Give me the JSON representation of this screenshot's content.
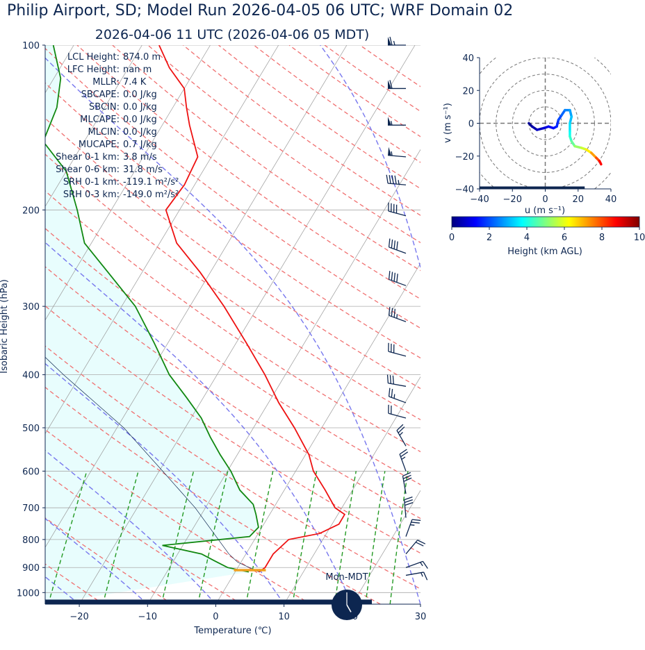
{
  "header": {
    "title": "Philip Airport, SD; Model Run 2026-04-05 06 UTC; WRF Domain 02",
    "subtitle": "2026-04-06 11 UTC  (2026-04-06 05 MDT)"
  },
  "colors": {
    "temperature": "#ee1111",
    "dewpoint": "#118811",
    "parcel_fill": "#e8fdfd",
    "dry_adiabat": "#f07070",
    "moist_adiabat": "#7777ee",
    "mixing_ratio": "#229922",
    "isotherm": "#999999",
    "text": "#0d2650",
    "lcl_marker": "#f0a020"
  },
  "stats": [
    {
      "label": "LCL Height:",
      "value": "874.0 m"
    },
    {
      "label": "LFC Height:",
      "value": "nan m"
    },
    {
      "label": "MLLR:",
      "value": "7.4 K"
    },
    {
      "label": "SBCAPE:",
      "value": "0.0 J/kg"
    },
    {
      "label": "SBCIN:",
      "value": "0.0 J/kg"
    },
    {
      "label": "MLCAPE:",
      "value": "0.0 J/kg"
    },
    {
      "label": "MLCIN:",
      "value": "0.0 J/kg"
    },
    {
      "label": "MUCAPE:",
      "value": "0.7 J/kg"
    },
    {
      "label": "Shear 0-1 km:",
      "value": "3.8 m/s"
    },
    {
      "label": "Shear 0-6 km:",
      "value": "31.8 m/s"
    },
    {
      "label": "SRH 0-1 km:",
      "value": "-119.1 m²/s²"
    },
    {
      "label": "SRH 0-3 km:",
      "value": "-149.0 m²/s²"
    }
  ],
  "clock": {
    "label": "Mon-MDT",
    "hour": 5,
    "minute": 0
  },
  "chart_data": [
    {
      "type": "line",
      "kind": "skew-T log-p sounding",
      "xlabel": "Temperature (℃)",
      "ylabel": "Isobaric Height (hPa)",
      "xlim": [
        -25,
        30
      ],
      "ylim": [
        1050,
        100
      ],
      "x_ticks": [
        -20,
        -10,
        0,
        10,
        20,
        30
      ],
      "y_ticks": [
        100,
        200,
        300,
        400,
        500,
        600,
        700,
        800,
        900,
        1000
      ],
      "series": [
        {
          "role": "temperature",
          "points": [
            [
              917,
              3.5
            ],
            [
              900,
              4.0
            ],
            [
              850,
              4.0
            ],
            [
              800,
              5.0
            ],
            [
              780,
              9.0
            ],
            [
              750,
              11.0
            ],
            [
              720,
              11.0
            ],
            [
              700,
              9.0
            ],
            [
              650,
              6.0
            ],
            [
              600,
              2.6
            ],
            [
              560,
              0.5
            ],
            [
              500,
              -4.0
            ],
            [
              450,
              -8.5
            ],
            [
              400,
              -13.0
            ],
            [
              350,
              -18.5
            ],
            [
              300,
              -25.0
            ],
            [
              260,
              -31.5
            ],
            [
              230,
              -37.5
            ],
            [
              200,
              -42.0
            ],
            [
              180,
              -41.5
            ],
            [
              160,
              -42.0
            ],
            [
              140,
              -46.0
            ],
            [
              130,
              -48.0
            ],
            [
              120,
              -50.0
            ],
            [
              110,
              -54.0
            ],
            [
              100,
              -57.5
            ]
          ]
        },
        {
          "role": "dewpoint",
          "points": [
            [
              917,
              2.0
            ],
            [
              900,
              -1.5
            ],
            [
              875,
              -4.0
            ],
            [
              850,
              -6.5
            ],
            [
              820,
              -13.0
            ],
            [
              790,
              -1.0
            ],
            [
              760,
              -0.5
            ],
            [
              720,
              -2.0
            ],
            [
              690,
              -3.3
            ],
            [
              650,
              -6.5
            ],
            [
              600,
              -9.5
            ],
            [
              560,
              -12.5
            ],
            [
              520,
              -15.5
            ],
            [
              480,
              -18.5
            ],
            [
              440,
              -22.5
            ],
            [
              400,
              -27.0
            ],
            [
              350,
              -32.0
            ],
            [
              300,
              -38.0
            ],
            [
              260,
              -45.0
            ],
            [
              230,
              -51.0
            ],
            [
              200,
              -55.0
            ],
            [
              170,
              -60.0
            ],
            [
              150,
              -66.0
            ],
            [
              130,
              -67.0
            ],
            [
              115,
              -69.0
            ],
            [
              100,
              -73.0
            ]
          ]
        },
        {
          "role": "parcel",
          "points": [
            [
              917,
              3.5
            ],
            [
              880,
              -0.5
            ],
            [
              850,
              -2.5
            ],
            [
              700,
              -11.5
            ],
            [
              600,
              -19.5
            ],
            [
              500,
              -29.0
            ],
            [
              400,
              -42.5
            ],
            [
              300,
              -59.0
            ],
            [
              200,
              -85.0
            ]
          ]
        }
      ],
      "lcl": {
        "pressure": 910,
        "temperature": 2.0
      },
      "wind_barbs": {
        "units": "kt",
        "levels": [
          {
            "p": 100,
            "speed": 65,
            "dir": 270
          },
          {
            "p": 120,
            "speed": 60,
            "dir": 270
          },
          {
            "p": 140,
            "speed": 55,
            "dir": 270
          },
          {
            "p": 160,
            "speed": 55,
            "dir": 275
          },
          {
            "p": 180,
            "speed": 45,
            "dir": 275
          },
          {
            "p": 205,
            "speed": 40,
            "dir": 285
          },
          {
            "p": 240,
            "speed": 40,
            "dir": 290
          },
          {
            "p": 275,
            "speed": 40,
            "dir": 290
          },
          {
            "p": 320,
            "speed": 35,
            "dir": 290
          },
          {
            "p": 370,
            "speed": 30,
            "dir": 285
          },
          {
            "p": 420,
            "speed": 30,
            "dir": 280
          },
          {
            "p": 450,
            "speed": 25,
            "dir": 290
          },
          {
            "p": 480,
            "speed": 20,
            "dir": 285
          },
          {
            "p": 540,
            "speed": 25,
            "dir": 330
          },
          {
            "p": 600,
            "speed": 25,
            "dir": 340
          },
          {
            "p": 660,
            "speed": 30,
            "dir": 350
          },
          {
            "p": 730,
            "speed": 30,
            "dir": 355
          },
          {
            "p": 790,
            "speed": 25,
            "dir": 20
          },
          {
            "p": 850,
            "speed": 20,
            "dir": 40
          },
          {
            "p": 900,
            "speed": 15,
            "dir": 70
          },
          {
            "p": 930,
            "speed": 15,
            "dir": 80
          }
        ]
      }
    },
    {
      "type": "line",
      "kind": "hodograph",
      "xlabel": "u (m s⁻¹)",
      "ylabel": "v (m s⁻¹)",
      "xlim": [
        -40,
        40
      ],
      "ylim": [
        -40,
        40
      ],
      "x_ticks": [
        -40,
        -20,
        0,
        20,
        40
      ],
      "y_ticks": [
        -40,
        -20,
        0,
        20,
        40
      ],
      "ring_spacing": 10,
      "points": [
        {
          "u": -10,
          "v": 0,
          "h": 0.1
        },
        {
          "u": -8,
          "v": -2,
          "h": 0.3
        },
        {
          "u": -5,
          "v": -4,
          "h": 0.5
        },
        {
          "u": -1,
          "v": -3,
          "h": 0.8
        },
        {
          "u": 2,
          "v": -2,
          "h": 1.0
        },
        {
          "u": 5,
          "v": -3,
          "h": 1.3
        },
        {
          "u": 7,
          "v": -2,
          "h": 1.5
        },
        {
          "u": 8,
          "v": 2,
          "h": 1.8
        },
        {
          "u": 10,
          "v": 5,
          "h": 2.1
        },
        {
          "u": 12,
          "v": 8,
          "h": 2.4
        },
        {
          "u": 15,
          "v": 8,
          "h": 2.7
        },
        {
          "u": 16,
          "v": 4,
          "h": 3.0
        },
        {
          "u": 15,
          "v": 0,
          "h": 3.3
        },
        {
          "u": 15,
          "v": -5,
          "h": 3.7
        },
        {
          "u": 15,
          "v": -8,
          "h": 4.0
        },
        {
          "u": 16,
          "v": -11,
          "h": 4.5
        },
        {
          "u": 18,
          "v": -14,
          "h": 5.0
        },
        {
          "u": 22,
          "v": -15,
          "h": 5.5
        },
        {
          "u": 25,
          "v": -16,
          "h": 6.0
        },
        {
          "u": 28,
          "v": -18,
          "h": 6.8
        },
        {
          "u": 31,
          "v": -21,
          "h": 7.6
        },
        {
          "u": 33,
          "v": -23,
          "h": 8.4
        },
        {
          "u": 34,
          "v": -25,
          "h": 9.0
        }
      ],
      "colorbar": {
        "label": "Height (km AGL)",
        "range": [
          0,
          10
        ],
        "ticks": [
          0,
          2,
          4,
          6,
          8,
          10
        ],
        "colormap": "jet"
      }
    }
  ]
}
